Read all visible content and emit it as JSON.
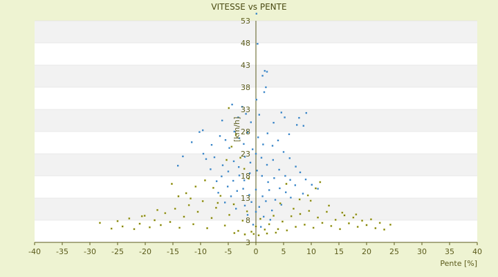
{
  "chart_data": {
    "type": "scatter",
    "title": "VITESSE vs PENTE",
    "xlabel": "Pente [%]",
    "ylabel": "[km/h]",
    "xlim": [
      -40,
      40
    ],
    "ylim": [
      3,
      53
    ],
    "xticks": [
      -40,
      -35,
      -30,
      -25,
      -20,
      -15,
      -10,
      -5,
      0,
      5,
      10,
      15,
      20,
      25,
      30,
      35,
      40
    ],
    "yticks": [
      3,
      8,
      13,
      18,
      23,
      28,
      33,
      38,
      43,
      48,
      53
    ],
    "grid": "horizontal bands",
    "legend": "none",
    "series": [
      {
        "color": "#3a86c8",
        "values": [
          [
            -9.6,
            28.3
          ],
          [
            -10.2,
            27.9
          ],
          [
            -6.1,
            30.5
          ],
          [
            -4.3,
            34.1
          ],
          [
            -3.2,
            31.2
          ],
          [
            -2.5,
            33.6
          ],
          [
            -1.8,
            32.0
          ],
          [
            -0.9,
            30.1
          ],
          [
            0.1,
            35.2
          ],
          [
            0.3,
            47.8
          ],
          [
            0.1,
            54.6
          ],
          [
            0.6,
            31.8
          ],
          [
            1.2,
            40.6
          ],
          [
            1.6,
            41.7
          ],
          [
            2.0,
            41.5
          ],
          [
            1.5,
            36.9
          ],
          [
            1.8,
            38.0
          ],
          [
            4.6,
            32.3
          ],
          [
            5.2,
            31.2
          ],
          [
            7.4,
            29.5
          ],
          [
            8.6,
            29.3
          ],
          [
            9.1,
            32.2
          ],
          [
            7.8,
            31.1
          ],
          [
            6.0,
            27.4
          ],
          [
            3.2,
            30.0
          ],
          [
            -11.6,
            25.6
          ],
          [
            -13.2,
            22.4
          ],
          [
            -14.1,
            20.3
          ],
          [
            -9.5,
            23.0
          ],
          [
            -8.0,
            25.0
          ],
          [
            -7.5,
            22.2
          ],
          [
            -6.5,
            27.0
          ],
          [
            -5.5,
            26.1
          ],
          [
            -4.8,
            24.3
          ],
          [
            -3.9,
            28.0
          ],
          [
            -3.0,
            26.5
          ],
          [
            -2.2,
            25.2
          ],
          [
            -1.5,
            27.8
          ],
          [
            -0.6,
            24.0
          ],
          [
            0.4,
            26.7
          ],
          [
            1.3,
            25.1
          ],
          [
            2.1,
            27.6
          ],
          [
            3.0,
            24.8
          ],
          [
            4.0,
            26.0
          ],
          [
            5.0,
            23.4
          ],
          [
            6.1,
            22.0
          ],
          [
            7.2,
            20.1
          ],
          [
            8.0,
            18.8
          ],
          [
            9.0,
            17.2
          ],
          [
            10.1,
            16.0
          ],
          [
            11.2,
            15.1
          ],
          [
            -6.0,
            20.4
          ],
          [
            -5.0,
            19.0
          ],
          [
            -4.0,
            21.3
          ],
          [
            -3.1,
            20.0
          ],
          [
            -2.0,
            22.3
          ],
          [
            -1.0,
            21.0
          ],
          [
            0.0,
            23.0
          ],
          [
            1.0,
            22.1
          ],
          [
            2.0,
            20.5
          ],
          [
            3.1,
            21.6
          ],
          [
            4.2,
            19.4
          ],
          [
            5.3,
            18.0
          ],
          [
            6.2,
            17.1
          ],
          [
            7.1,
            15.9
          ],
          [
            -7.1,
            16.8
          ],
          [
            -6.2,
            17.9
          ],
          [
            -5.1,
            15.6
          ],
          [
            -4.1,
            16.9
          ],
          [
            -3.0,
            18.1
          ],
          [
            -2.1,
            17.0
          ],
          [
            -1.1,
            18.6
          ],
          [
            0.2,
            19.2
          ],
          [
            1.1,
            18.0
          ],
          [
            2.2,
            16.6
          ],
          [
            3.3,
            17.5
          ],
          [
            4.3,
            15.2
          ],
          [
            5.4,
            14.3
          ],
          [
            6.3,
            13.1
          ],
          [
            -4.5,
            13.4
          ],
          [
            -3.4,
            14.6
          ],
          [
            -2.3,
            15.1
          ],
          [
            -1.2,
            13.7
          ],
          [
            0.0,
            14.9
          ],
          [
            1.2,
            13.4
          ],
          [
            2.4,
            14.8
          ],
          [
            3.5,
            12.6
          ],
          [
            4.6,
            11.5
          ],
          [
            -2.0,
            11.3
          ],
          [
            -0.8,
            12.1
          ],
          [
            0.6,
            11.0
          ],
          [
            1.8,
            12.3
          ],
          [
            2.9,
            10.2
          ],
          [
            -1.5,
            9.2
          ],
          [
            0.0,
            9.9
          ],
          [
            1.4,
            8.8
          ],
          [
            2.6,
            8.1
          ],
          [
            -0.5,
            7.0
          ],
          [
            0.9,
            6.5
          ],
          [
            -3.6,
            10.6
          ],
          [
            -5.6,
            12.0
          ],
          [
            -6.8,
            14.2
          ],
          [
            -8.2,
            19.5
          ],
          [
            -9.0,
            21.8
          ],
          [
            8.5,
            14.0
          ]
        ]
      },
      {
        "color": "#7a7a10",
        "values": [
          [
            -28.2,
            7.4
          ],
          [
            -26.1,
            6.1
          ],
          [
            -25.0,
            7.8
          ],
          [
            -24.1,
            6.6
          ],
          [
            -22.9,
            8.4
          ],
          [
            -22.0,
            6.0
          ],
          [
            -21.0,
            7.2
          ],
          [
            -20.1,
            9.0
          ],
          [
            -19.2,
            6.4
          ],
          [
            -18.3,
            8.0
          ],
          [
            -17.2,
            6.9
          ],
          [
            -16.4,
            9.6
          ],
          [
            -15.5,
            7.6
          ],
          [
            -14.6,
            10.6
          ],
          [
            -13.8,
            6.3
          ],
          [
            -13.0,
            8.8
          ],
          [
            -12.1,
            11.4
          ],
          [
            -11.3,
            7.1
          ],
          [
            -10.5,
            9.9
          ],
          [
            -9.6,
            12.3
          ],
          [
            -8.8,
            6.2
          ],
          [
            -8.0,
            8.5
          ],
          [
            -7.2,
            10.8
          ],
          [
            -6.4,
            13.5
          ],
          [
            -5.6,
            6.8
          ],
          [
            -4.8,
            9.2
          ],
          [
            -4.0,
            11.6
          ],
          [
            -3.2,
            5.6
          ],
          [
            -2.4,
            7.9
          ],
          [
            -1.6,
            10.0
          ],
          [
            -0.8,
            5.4
          ],
          [
            0.0,
            6.6
          ],
          [
            0.8,
            8.3
          ],
          [
            1.6,
            5.9
          ],
          [
            2.4,
            7.1
          ],
          [
            3.2,
            9.0
          ],
          [
            4.0,
            6.0
          ],
          [
            4.8,
            7.7
          ],
          [
            5.6,
            5.7
          ],
          [
            6.4,
            8.9
          ],
          [
            7.2,
            6.5
          ],
          [
            8.0,
            9.4
          ],
          [
            8.8,
            7.0
          ],
          [
            9.6,
            10.1
          ],
          [
            10.4,
            6.3
          ],
          [
            11.2,
            8.6
          ],
          [
            12.0,
            7.4
          ],
          [
            12.8,
            9.9
          ],
          [
            13.6,
            6.7
          ],
          [
            14.4,
            8.1
          ],
          [
            15.2,
            6.0
          ],
          [
            16.0,
            9.1
          ],
          [
            16.8,
            7.3
          ],
          [
            17.6,
            8.6
          ],
          [
            18.4,
            6.5
          ],
          [
            19.2,
            7.9
          ],
          [
            20.0,
            6.9
          ],
          [
            20.8,
            8.2
          ],
          [
            21.6,
            6.2
          ],
          [
            22.4,
            7.4
          ],
          [
            23.2,
            5.9
          ],
          [
            24.3,
            7.0
          ],
          [
            -15.2,
            16.2
          ],
          [
            -12.6,
            14.1
          ],
          [
            -10.9,
            15.6
          ],
          [
            -9.2,
            17.0
          ],
          [
            -7.7,
            15.3
          ],
          [
            -5.3,
            21.6
          ],
          [
            -4.4,
            24.6
          ],
          [
            -3.6,
            27.3
          ],
          [
            -2.8,
            22.1
          ],
          [
            -4.9,
            33.3
          ],
          [
            -2.1,
            19.6
          ],
          [
            -1.3,
            17.4
          ],
          [
            5.5,
            16.2
          ],
          [
            7.9,
            12.7
          ],
          [
            9.4,
            13.6
          ],
          [
            10.8,
            15.2
          ],
          [
            11.6,
            16.6
          ],
          [
            -6.9,
            11.9
          ],
          [
            6.8,
            10.6
          ],
          [
            13.2,
            11.3
          ],
          [
            -0.4,
            4.9
          ],
          [
            0.5,
            4.6
          ],
          [
            2.0,
            5.0
          ],
          [
            -2.0,
            4.8
          ],
          [
            3.6,
            5.2
          ],
          [
            -3.9,
            5.1
          ],
          [
            15.6,
            9.7
          ],
          [
            18.1,
            9.3
          ],
          [
            -17.8,
            10.3
          ],
          [
            -20.6,
            8.9
          ],
          [
            -11.8,
            12.9
          ],
          [
            -14.0,
            13.4
          ],
          [
            9.9,
            12.4
          ],
          [
            4.4,
            11.8
          ]
        ]
      }
    ]
  }
}
